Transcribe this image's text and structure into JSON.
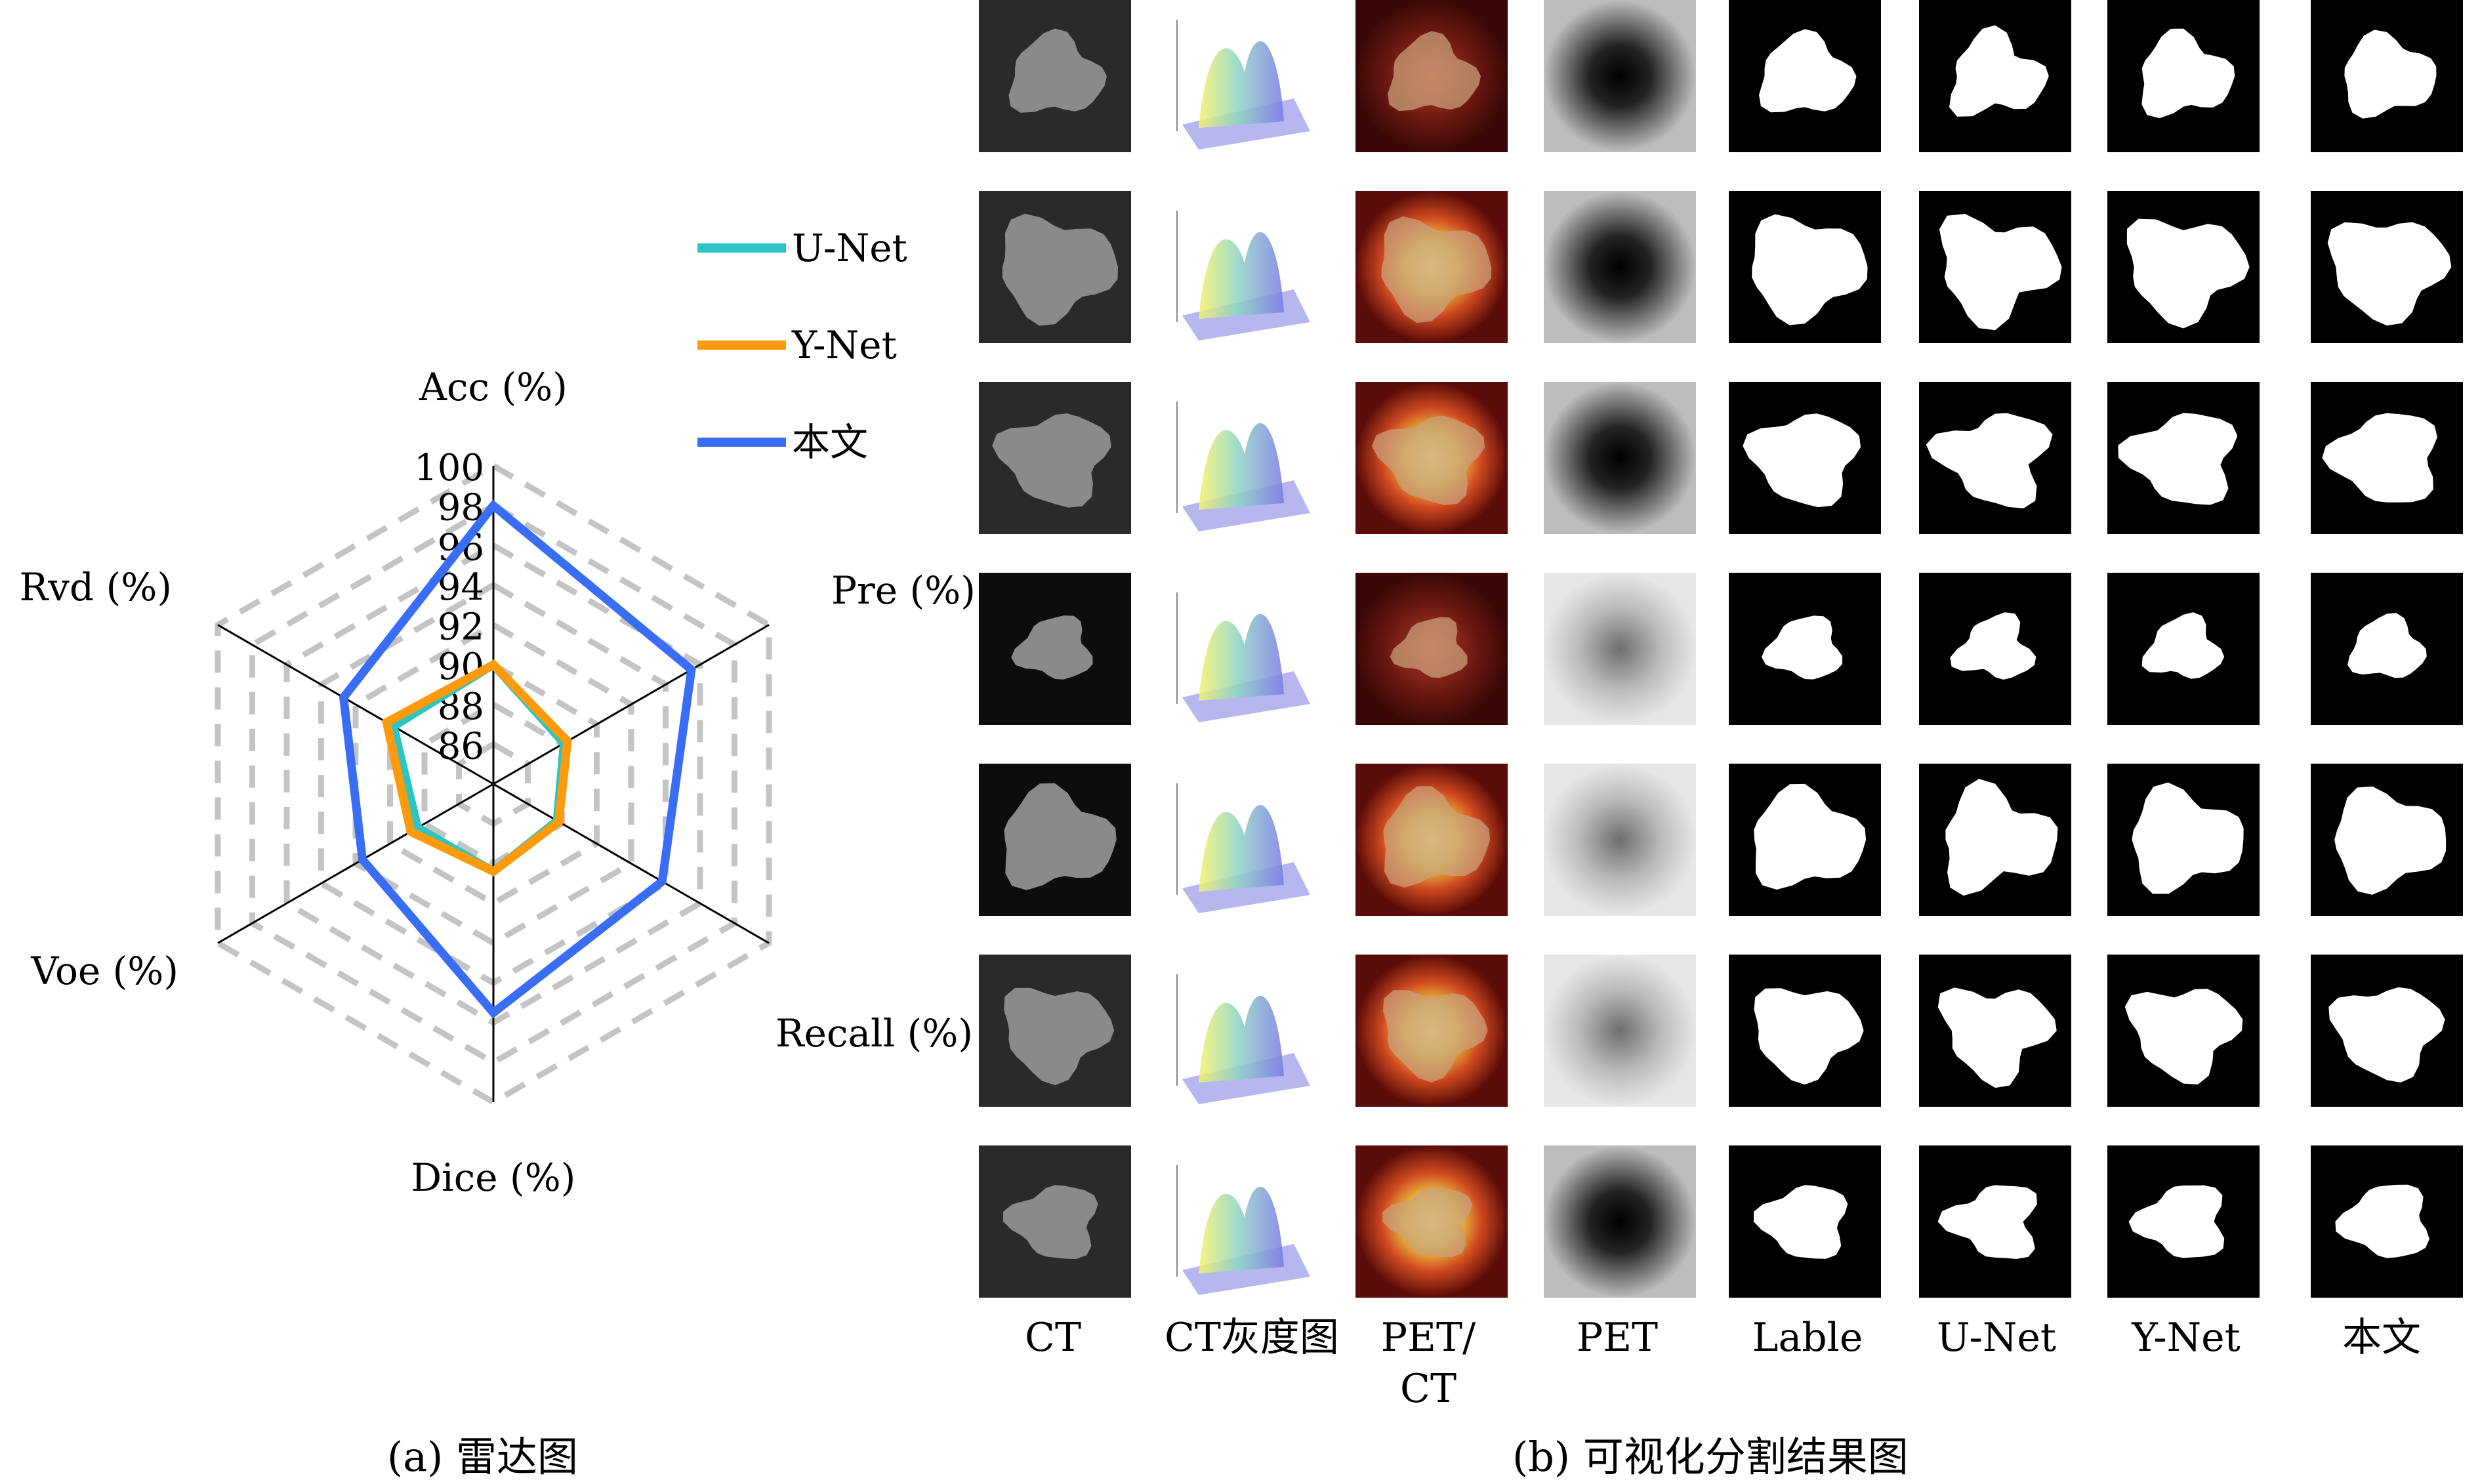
{
  "chart_data": {
    "type": "radar",
    "axes": [
      "Acc (%)",
      "Pre (%)",
      "Recall (%)",
      "Dice (%)",
      "Voe (%)",
      "Rvd (%)"
    ],
    "ticks": [
      "86",
      "88",
      "90",
      "92",
      "94",
      "96",
      "98",
      "100"
    ],
    "range": [
      84,
      100
    ],
    "grid": "dashed",
    "legend_position": "top-right",
    "series": [
      {
        "name": "U-Net",
        "color": "#2ec4c4",
        "values": [
          90.0,
          88.1,
          87.7,
          88.4,
          88.4,
          89.8
        ]
      },
      {
        "name": "Y-Net",
        "color": "#ff9a0a",
        "values": [
          90.0,
          88.3,
          87.8,
          88.4,
          88.8,
          90.2
        ]
      },
      {
        "name": "本文",
        "color": "#3a6df5",
        "values": [
          98.0,
          95.5,
          93.8,
          95.5,
          91.6,
          92.7
        ]
      }
    ]
  },
  "figure_b": {
    "column_labels": [
      "CT",
      "CT灰度图",
      "PET/\nCT",
      "PET",
      "Lable",
      "U-Net",
      "Y-Net",
      "本文"
    ],
    "rows": 7
  },
  "captions": {
    "a": "(a) 雷达图",
    "b": "(b) 可视化分割结果图"
  }
}
